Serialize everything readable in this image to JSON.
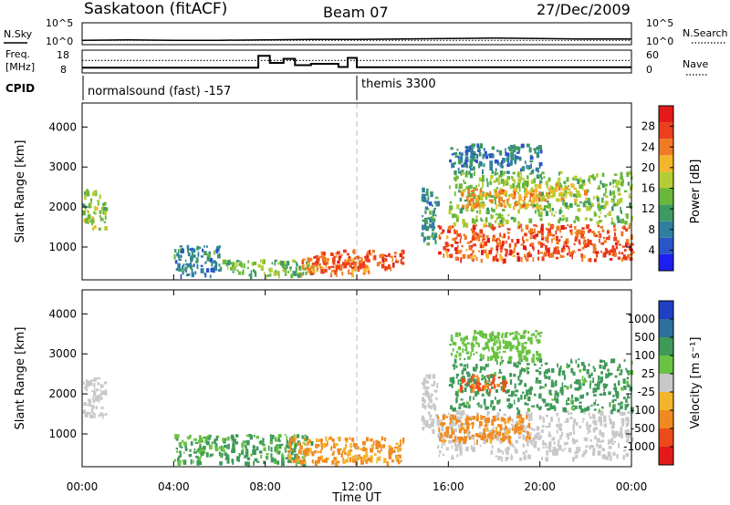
{
  "header": {
    "station": "Saskatoon (fitACF)",
    "beam": "Beam 07",
    "date": "27/Dec/2009"
  },
  "status_panels": {
    "nsky_label": "N.Sky",
    "nsearch_label": "N.Search",
    "freq_label_line1": "Freq.",
    "freq_label_line2": "[MHz]",
    "nave_label": "Nave",
    "cpid_label": "CPID",
    "nsky_ticks": [
      "10^5",
      "10^0"
    ],
    "nsearch_ticks": [
      "10^5",
      "10^0"
    ],
    "freq_ticks": [
      "18",
      "8"
    ],
    "nave_ticks": [
      "60",
      "0"
    ],
    "cpid_segments": [
      {
        "text": "normalsound (fast) -157",
        "start_hour": 0,
        "end_hour": 12
      },
      {
        "text": "themis 3300",
        "start_hour": 12,
        "end_hour": 24
      }
    ]
  },
  "chart_data": [
    {
      "type": "line",
      "panel": "noise",
      "series": [
        {
          "name": "N.Sky",
          "style": "solid",
          "x": [
            0,
            2,
            4,
            6,
            8,
            10,
            12,
            14,
            16,
            18,
            20,
            22,
            24
          ],
          "y_log10": [
            1.0,
            1.1,
            1.0,
            1.0,
            1.1,
            1.2,
            1.2,
            1.3,
            1.4,
            1.5,
            1.4,
            1.3,
            1.3
          ]
        },
        {
          "name": "N.Search",
          "style": "dotted",
          "x": [
            0,
            24
          ],
          "y_log10": [
            1.0,
            1.0
          ]
        }
      ]
    },
    {
      "type": "line",
      "panel": "frequency",
      "series": [
        {
          "name": "Freq",
          "style": "solid",
          "x": [
            0,
            7.7,
            7.7,
            8.2,
            8.2,
            8.8,
            8.8,
            9.3,
            9.3,
            10.0,
            10.0,
            11.2,
            11.2,
            11.6,
            11.6,
            12.0,
            12.0,
            24
          ],
          "y": [
            10.3,
            10.3,
            15.5,
            15.5,
            12.4,
            12.4,
            14.2,
            14.2,
            11.4,
            11.4,
            12.0,
            12.0,
            10.6,
            10.6,
            14.6,
            14.6,
            10.5,
            10.5
          ]
        },
        {
          "name": "Nave",
          "style": "dotted",
          "x": [
            0,
            24
          ],
          "y": [
            33,
            33
          ]
        }
      ]
    },
    {
      "type": "heatmap",
      "panel": "power",
      "xlabel": "",
      "ylabel": "Slant Range [km]",
      "xlim": [
        0,
        24
      ],
      "ylim": [
        180,
        4600
      ],
      "yticks": [
        1000,
        2000,
        3000,
        4000
      ],
      "colorbar": {
        "label": "Power [dB]",
        "ticks": [
          4,
          8,
          12,
          16,
          20,
          24,
          28
        ],
        "range": [
          0,
          32
        ],
        "colors": [
          "#1c1ff0",
          "#2a55c8",
          "#2f7fa0",
          "#3d9a62",
          "#69b83a",
          "#b4cd36",
          "#f5b52a",
          "#f07b22",
          "#ec3f1c",
          "#e31a1a"
        ]
      },
      "regions": [
        {
          "x": [
            0.0,
            1.0
          ],
          "r": [
            1450,
            2450
          ],
          "value": 16
        },
        {
          "x": [
            4.0,
            6.0
          ],
          "r": [
            300,
            1050
          ],
          "value": 9
        },
        {
          "x": [
            6.0,
            10.0
          ],
          "r": [
            300,
            700
          ],
          "value": 14
        },
        {
          "x": [
            9.5,
            12.5
          ],
          "r": [
            350,
            800
          ],
          "value": 24
        },
        {
          "x": [
            10.0,
            14.0
          ],
          "r": [
            500,
            950
          ],
          "value": 26
        },
        {
          "x": [
            14.8,
            15.5
          ],
          "r": [
            1100,
            2500
          ],
          "value": 10
        },
        {
          "x": [
            15.5,
            24.0
          ],
          "r": [
            700,
            1600
          ],
          "value": 26
        },
        {
          "x": [
            16.0,
            24.0
          ],
          "r": [
            1600,
            2900
          ],
          "value": 15
        },
        {
          "x": [
            16.5,
            20.0
          ],
          "r": [
            2000,
            2500
          ],
          "value": 22
        },
        {
          "x": [
            19.5,
            22.0
          ],
          "r": [
            2200,
            2600
          ],
          "value": 20
        },
        {
          "x": [
            16.0,
            20.0
          ],
          "r": [
            2900,
            3600
          ],
          "value": 8
        }
      ]
    },
    {
      "type": "heatmap",
      "panel": "velocity",
      "xlabel": "Time UT",
      "ylabel": "Slant Range [km]",
      "xlim": [
        0,
        24
      ],
      "ylim": [
        180,
        4600
      ],
      "xticks": [
        "00:00",
        "04:00",
        "08:00",
        "12:00",
        "16:00",
        "20:00",
        "00:00"
      ],
      "yticks": [
        1000,
        2000,
        3000,
        4000
      ],
      "colorbar": {
        "label": "Velocity [m s⁻¹]",
        "ticks": [
          "1000",
          "500",
          "100",
          "25",
          "-25",
          "-100",
          "-500",
          "-1000"
        ],
        "colors": [
          "#1f3fc4",
          "#2e6fa0",
          "#3f9a59",
          "#69c242",
          "#c8c8c8",
          "#f5b52a",
          "#f08a20",
          "#ec4a1a",
          "#e31a1a"
        ]
      },
      "regions": [
        {
          "x": [
            0.0,
            1.0
          ],
          "r": [
            1450,
            2450
          ],
          "value": 0
        },
        {
          "x": [
            4.0,
            10.0
          ],
          "r": [
            300,
            1000
          ],
          "value": 120
        },
        {
          "x": [
            9.0,
            14.0
          ],
          "r": [
            300,
            950
          ],
          "value": -120
        },
        {
          "x": [
            14.8,
            15.5
          ],
          "r": [
            1100,
            2500
          ],
          "value": 0
        },
        {
          "x": [
            15.5,
            24.0
          ],
          "r": [
            400,
            1600
          ],
          "value": -10
        },
        {
          "x": [
            15.5,
            19.5
          ],
          "r": [
            850,
            1500
          ],
          "value": -150
        },
        {
          "x": [
            16.0,
            24.0
          ],
          "r": [
            1600,
            2900
          ],
          "value": 150
        },
        {
          "x": [
            16.5,
            18.5
          ],
          "r": [
            2100,
            2500
          ],
          "value": -600
        },
        {
          "x": [
            16.0,
            20.0
          ],
          "r": [
            2900,
            3600
          ],
          "value": 60
        }
      ]
    }
  ]
}
